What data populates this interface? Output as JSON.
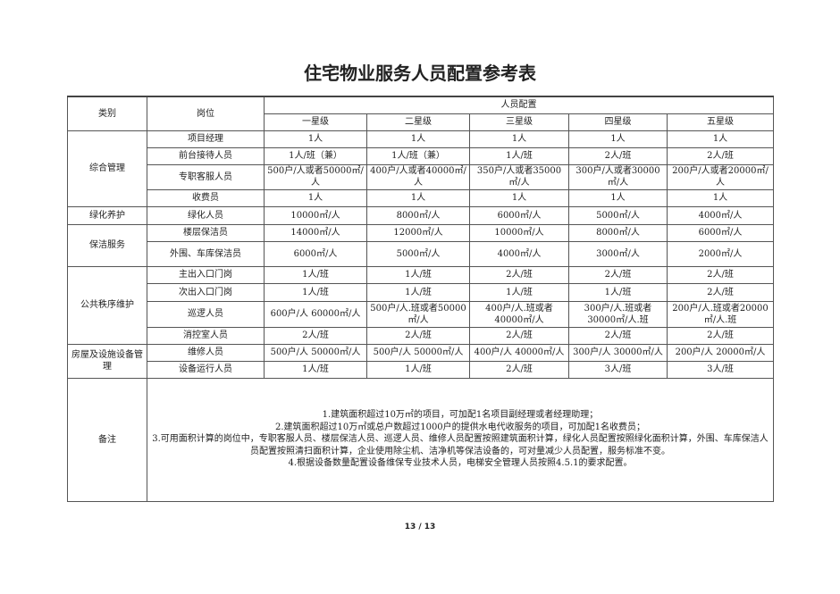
{
  "title": "住宅物业服务人员配置参考表",
  "header": {
    "category": "类别",
    "position": "岗位",
    "config": "人员配置",
    "levels": [
      "一星级",
      "二星级",
      "三星级",
      "四星级",
      "五星级"
    ]
  },
  "rows": [
    {
      "category": "综合管理",
      "span": 4,
      "position": "项目经理",
      "values": [
        "1人",
        "1人",
        "1人",
        "1人",
        "1人"
      ]
    },
    {
      "position": "前台接待人员",
      "values": [
        "1人/班（兼）",
        "1人/班（兼）",
        "1人/班",
        "2人/班",
        "2人/班"
      ]
    },
    {
      "position": "专职客服人员",
      "values": [
        "500户/人或者50000㎡/人",
        "400户/人或者40000㎡/人",
        "350户/人或者35000㎡/人",
        "300户/人或者30000㎡/人",
        "200户/人或者20000㎡/人"
      ]
    },
    {
      "position": "收费员",
      "values": [
        "1人",
        "1人",
        "1人",
        "1人",
        "1人"
      ]
    },
    {
      "category": "绿化养护",
      "span": 1,
      "position": "绿化人员",
      "values": [
        "10000㎡/人",
        "8000㎡/人",
        "6000㎡/人",
        "5000㎡/人",
        "4000㎡/人"
      ]
    },
    {
      "category": "保洁服务",
      "span": 2,
      "position": "楼层保洁员",
      "values": [
        "14000㎡/人",
        "12000㎡/人",
        "10000㎡/人",
        "8000㎡/人",
        "6000㎡/人"
      ]
    },
    {
      "position": "外围、车库保洁员",
      "values": [
        "6000㎡/人",
        "5000㎡/人",
        "4000㎡/人",
        "3000㎡/人",
        "2000㎡/人"
      ]
    },
    {
      "category": "公共秩序维护",
      "span": 4,
      "position": "主出入口门岗",
      "values": [
        "1人/班",
        "1人/班",
        "2人/班",
        "2人/班",
        "2人/班"
      ]
    },
    {
      "position": "次出入口门岗",
      "values": [
        "1人/班",
        "1人/班",
        "1人/班",
        "1人/班",
        "2人/班"
      ]
    },
    {
      "position": "巡逻人员",
      "values": [
        "600户/人 60000㎡/人",
        "500户/人.班或者50000㎡/人",
        "400户/人.班或者40000㎡/人",
        "300户/人.班或者30000㎡/人.班",
        "200户/人.班或者20000㎡/人.班"
      ]
    },
    {
      "position": "消控室人员",
      "values": [
        "2人/班",
        "2人/班",
        "2人/班",
        "2人/班",
        "2人/班"
      ]
    },
    {
      "category": "房屋及设施设备管理",
      "span": 2,
      "position": "维修人员",
      "values": [
        "500户/人 50000㎡/人",
        "500户/人 50000㎡/人",
        "400户/人 40000㎡/人",
        "300户/人 30000㎡/人",
        "200户/人 20000㎡/人"
      ]
    },
    {
      "position": "设备运行人员",
      "values": [
        "1人/班",
        "1人/班",
        "2人/班",
        "3人/班",
        "3人/班"
      ]
    }
  ],
  "notes": {
    "label": "备注",
    "lines": [
      "1.建筑面积超过10万㎡的项目，可加配1名项目副经理或者经理助理；",
      "2.建筑面积超过10万㎡或总户数超过1000户的提供水电代收服务的项目，可加配1名收费员；",
      "3.可用面积计算的岗位中，专职客服人员、楼层保洁人员、巡逻人员、维修人员配置按照建筑面积计算，绿化人员配置按照绿化面积计算，外围、车库保洁人员配置按照清扫面积计算，企业使用除尘机、洁净机等保洁设备的，可对量减少人员配置，服务标准不变。",
      "4.根据设备数量配置设备维保专业技术人员，电梯安全管理人员按照4.5.1的要求配置。"
    ]
  },
  "page": "13 / 13"
}
